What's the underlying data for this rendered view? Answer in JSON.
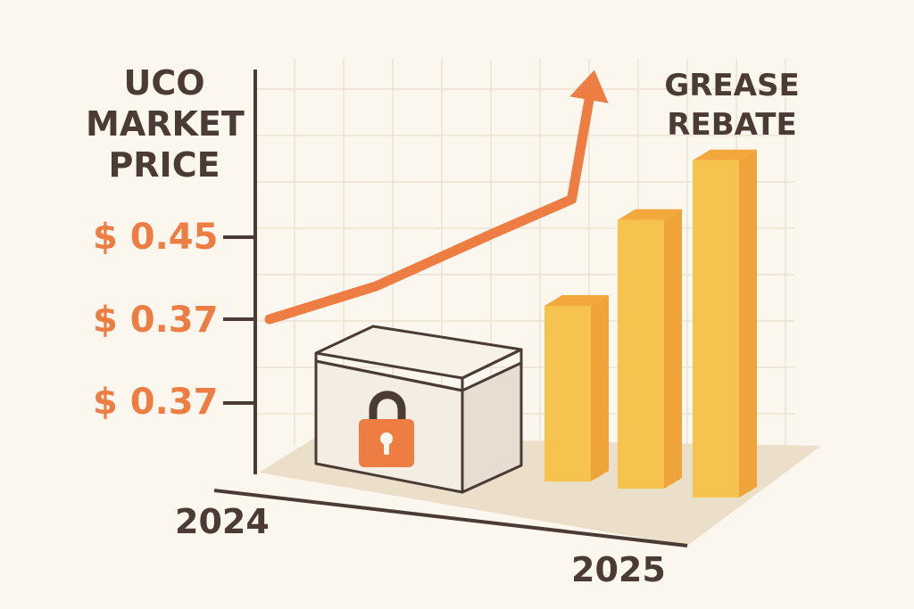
{
  "colors": {
    "background": "#fbf7ef",
    "text": "#4a3c34",
    "accent": "#ee7d44",
    "bar": "#f7c34f"
  },
  "chart_data": {
    "type": "line",
    "title": "UCO\nMARKET\nPRICE",
    "subtitle": "GREASE\nREBATE",
    "y_tick_labels": [
      "$ 0.45",
      "$ 0.37",
      "$ 0.37"
    ],
    "x_tick_labels": [
      "2024",
      "2025"
    ],
    "grid": true,
    "series": [
      {
        "kind": "line",
        "style": "trend-arrow",
        "values": [
          0.356,
          0.377,
          0.41,
          0.432,
          0.495
        ]
      },
      {
        "kind": "bar",
        "values": [
          1,
          1.53,
          1.92
        ]
      }
    ],
    "annotation_icon": "padlock-icon"
  }
}
